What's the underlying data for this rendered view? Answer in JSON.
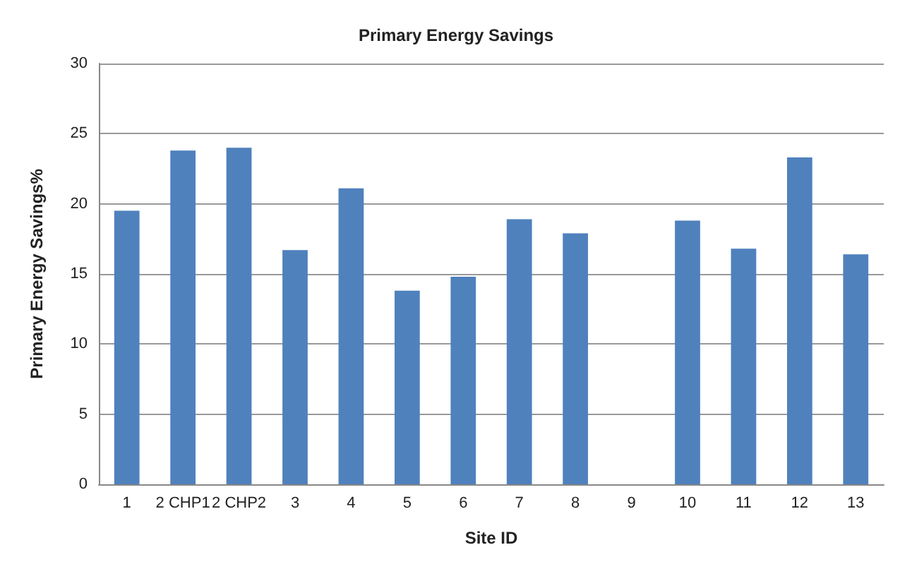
{
  "chart_data": {
    "type": "bar",
    "title": "Primary Energy Savings",
    "xlabel": "Site ID",
    "ylabel": "Primary Energy Savings%",
    "categories": [
      "1",
      "2 CHP1",
      "2 CHP2",
      "3",
      "4",
      "5",
      "6",
      "7",
      "8",
      "9",
      "10",
      "11",
      "12",
      "13"
    ],
    "values": [
      19.5,
      23.8,
      24.0,
      16.7,
      21.1,
      13.8,
      14.8,
      18.9,
      17.9,
      null,
      18.8,
      16.8,
      23.3,
      16.4
    ],
    "color": "#4f81bd",
    "ylim": [
      0,
      30
    ],
    "yticks": [
      0,
      5,
      10,
      15,
      20,
      25,
      30
    ],
    "grid": "y"
  }
}
